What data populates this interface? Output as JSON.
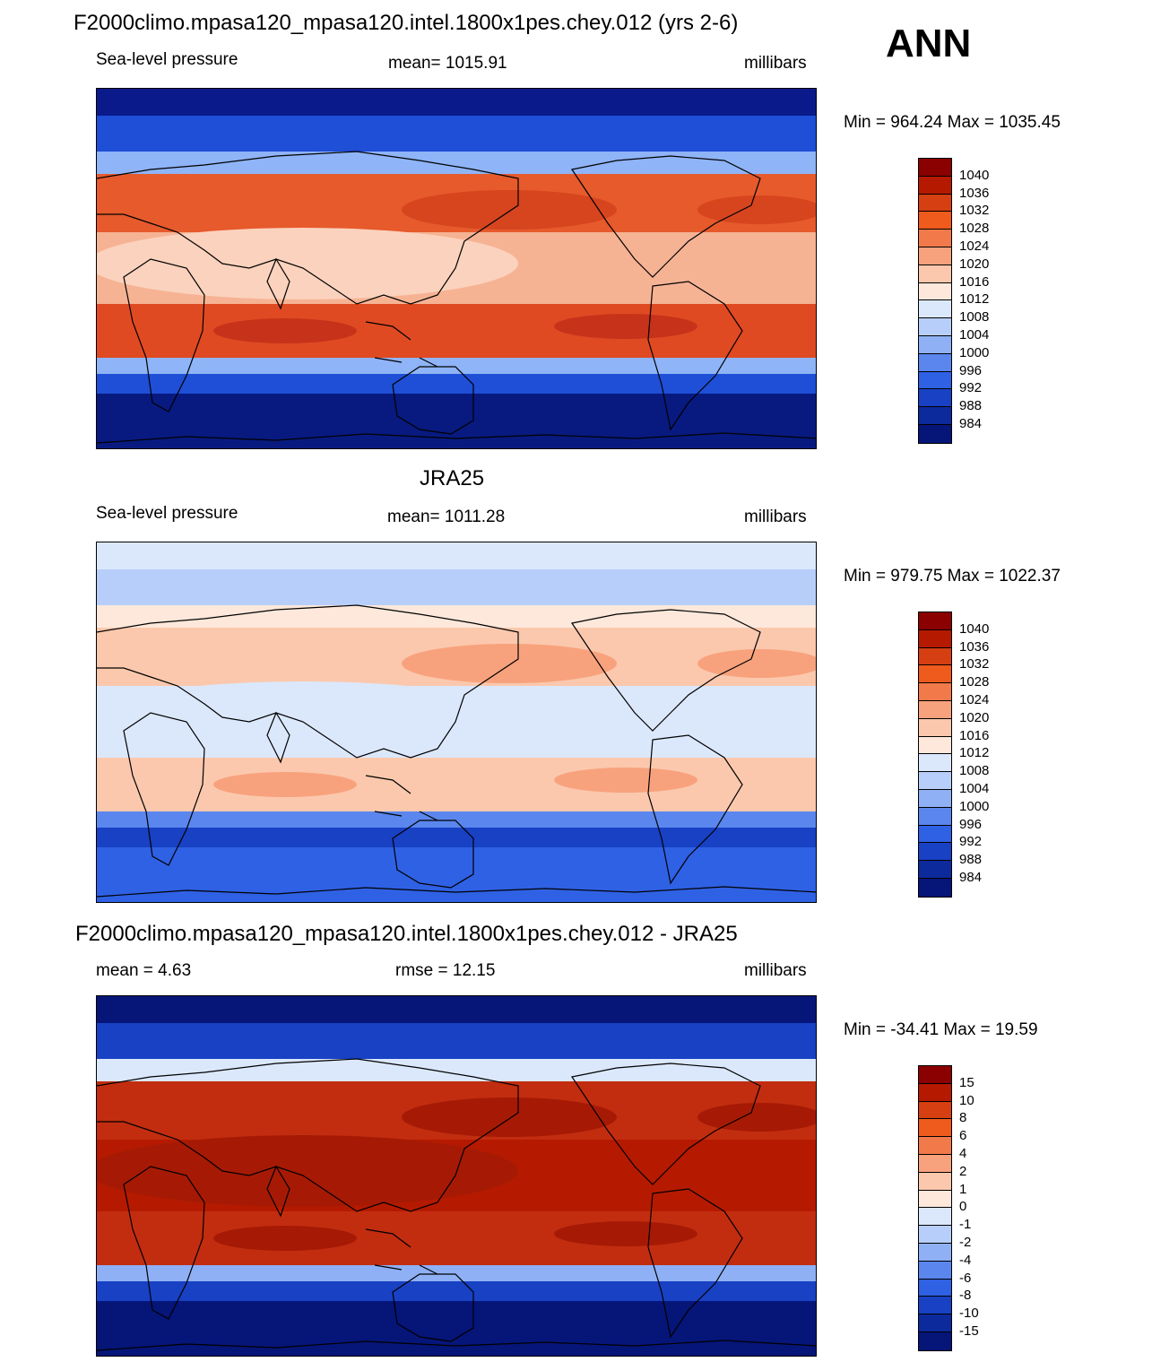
{
  "season": "ANN",
  "panels": [
    {
      "title": "F2000climo.mpasa120_mpasa120.intel.1800x1pes.chey.012 (yrs 2-6)",
      "left_label": "Sea-level pressure",
      "center_label": "mean= 1015.91",
      "right_label": "millibars",
      "minmax": "Min = 964.24 Max = 1035.45",
      "map_colors": {
        "polar_n": "#0a1a8a",
        "subpolar_n": "#1e4fd6",
        "transition_n": "#8fb4f7",
        "belt_n": "#e65a2c",
        "high_n": "#d6451e",
        "tropics": "#f6b394",
        "tropics_core": "#fbd2bd",
        "belt_s": "#e04a22",
        "high_s": "#c6331a",
        "transition_s": "#8fb4f7",
        "subpolar_s": "#1e4fd6",
        "polar_s": "#081a7f"
      },
      "colorbar": {
        "labels": [
          "1040",
          "1036",
          "1032",
          "1028",
          "1024",
          "1020",
          "1016",
          "1012",
          "1008",
          "1004",
          "1000",
          "996",
          "992",
          "988",
          "984"
        ],
        "colors": [
          "#8b0000",
          "#b51a00",
          "#d63f12",
          "#ef5a1d",
          "#f27a4a",
          "#f8a27d",
          "#fbc8ad",
          "#fde8db",
          "#dbe8fc",
          "#b8cefa",
          "#8fb0f5",
          "#5a86ee",
          "#2f61e4",
          "#1841c4",
          "#0d2a9c",
          "#061578"
        ]
      }
    },
    {
      "title": "JRA25",
      "left_label": "Sea-level pressure",
      "center_label": "mean= 1011.28",
      "right_label": "millibars",
      "minmax": "Min = 979.75 Max = 1022.37",
      "map_colors": {
        "polar_n": "#dbe8fc",
        "subpolar_n": "#b8cefa",
        "transition_n": "#fde8db",
        "belt_n": "#fbc8ad",
        "high_n": "#f8a27d",
        "tropics": "#dbe8fc",
        "tropics_core": "#dbe8fc",
        "belt_s": "#fbc8ad",
        "high_s": "#f8a27d",
        "transition_s": "#5a86ee",
        "subpolar_s": "#1841c4",
        "polar_s": "#2f61e4"
      },
      "colorbar": {
        "labels": [
          "1040",
          "1036",
          "1032",
          "1028",
          "1024",
          "1020",
          "1016",
          "1012",
          "1008",
          "1004",
          "1000",
          "996",
          "992",
          "988",
          "984"
        ],
        "colors": [
          "#8b0000",
          "#b51a00",
          "#d63f12",
          "#ef5a1d",
          "#f27a4a",
          "#f8a27d",
          "#fbc8ad",
          "#fde8db",
          "#dbe8fc",
          "#b8cefa",
          "#8fb0f5",
          "#5a86ee",
          "#2f61e4",
          "#1841c4",
          "#0d2a9c",
          "#061578"
        ]
      }
    },
    {
      "title": "F2000climo.mpasa120_mpasa120.intel.1800x1pes.chey.012 - JRA25",
      "left_label": "mean =   4.63",
      "center_label": "rmse =  12.15",
      "right_label": "millibars",
      "minmax": "Min = -34.41 Max =  19.59",
      "map_colors": {
        "polar_n": "#061578",
        "subpolar_n": "#1841c4",
        "transition_n": "#dbe8fc",
        "belt_n": "#c22d10",
        "high_n": "#a61a05",
        "tropics": "#b51a00",
        "tropics_core": "#a61a05",
        "belt_s": "#c22d10",
        "high_s": "#a61a05",
        "transition_s": "#8fb0f5",
        "subpolar_s": "#1841c4",
        "polar_s": "#061578"
      },
      "colorbar": {
        "labels": [
          "15",
          "10",
          "8",
          "6",
          "4",
          "2",
          "1",
          "0",
          "-1",
          "-2",
          "-4",
          "-6",
          "-8",
          "-10",
          "-15"
        ],
        "colors": [
          "#8b0000",
          "#b51a00",
          "#d63f12",
          "#ef5a1d",
          "#f27a4a",
          "#f8a27d",
          "#fbc8ad",
          "#fde8db",
          "#dbe8fc",
          "#b8cefa",
          "#8fb0f5",
          "#5a86ee",
          "#2f61e4",
          "#1841c4",
          "#0d2a9c",
          "#061578"
        ]
      }
    }
  ]
}
